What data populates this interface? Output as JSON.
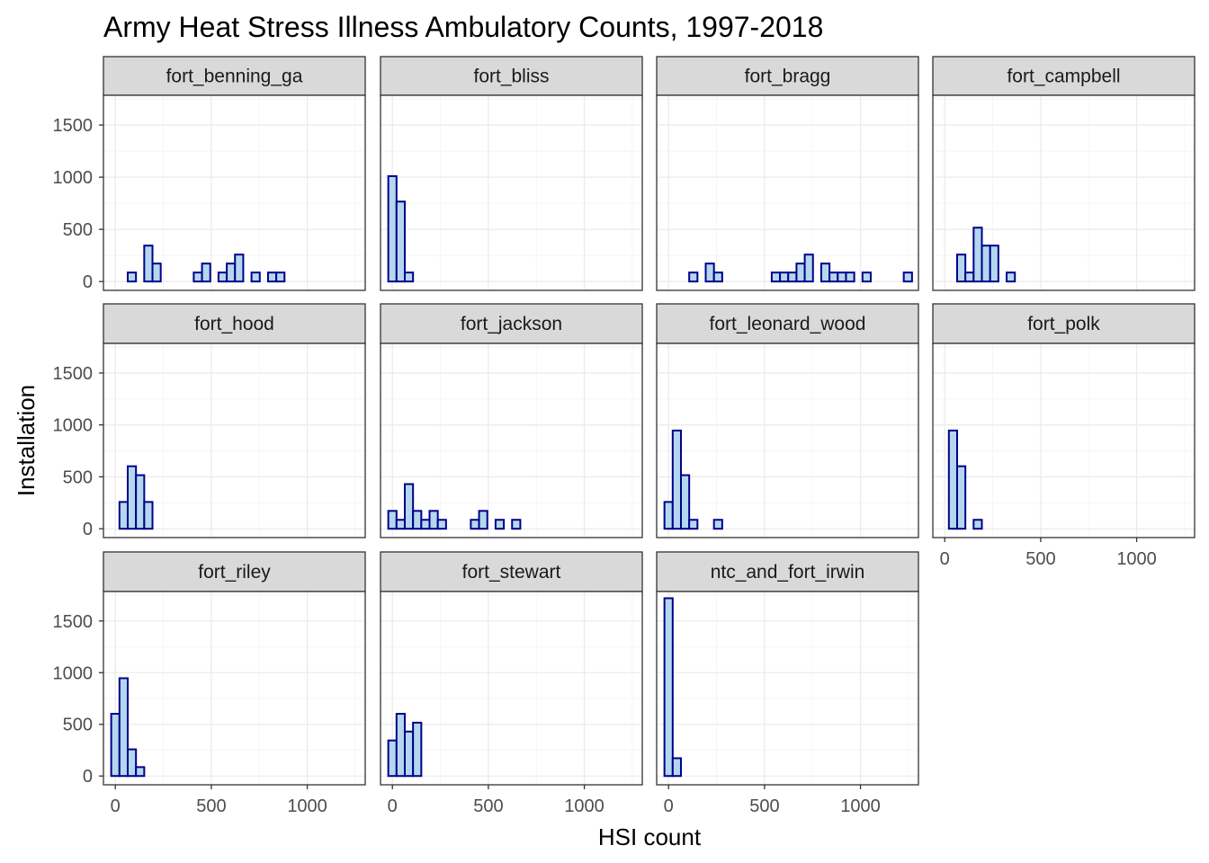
{
  "chart_data": {
    "type": "histogram",
    "title": "Army Heat Stress Illness Ambulatory Counts, 1997-2018",
    "xlabel": "HSI count",
    "ylabel": "Installation",
    "xlim": [
      -62,
      1302
    ],
    "ylim": [
      -85,
      1785
    ],
    "x_ticks": [
      0,
      500,
      1000
    ],
    "y_ticks": [
      0,
      500,
      1000,
      1500
    ],
    "bin_width": 43,
    "bin_start": -21.5,
    "bar_fill": "#b4d7ed",
    "bar_stroke": "#00008b",
    "facet_columns": 4,
    "facets": [
      {
        "name": "fort_benning_ga",
        "counts": [
          0,
          0,
          86,
          0,
          344,
          172,
          0,
          0,
          0,
          0,
          86,
          172,
          0,
          86,
          172,
          258,
          0,
          86,
          0,
          86,
          86
        ]
      },
      {
        "name": "fort_bliss",
        "counts": [
          1010,
          766,
          86
        ]
      },
      {
        "name": "fort_bragg",
        "counts": [
          0,
          0,
          0,
          86,
          0,
          172,
          86,
          0,
          0,
          0,
          0,
          0,
          0,
          86,
          86,
          86,
          172,
          258,
          0,
          172,
          86,
          86,
          86,
          0,
          86,
          0,
          0,
          0,
          0,
          86
        ]
      },
      {
        "name": "fort_campbell",
        "counts": [
          0,
          0,
          258,
          86,
          516,
          344,
          344,
          0,
          86
        ]
      },
      {
        "name": "fort_hood",
        "counts": [
          0,
          258,
          602,
          516,
          258
        ]
      },
      {
        "name": "fort_jackson",
        "counts": [
          172,
          86,
          430,
          172,
          86,
          172,
          86,
          0,
          0,
          0,
          86,
          172,
          0,
          86,
          0,
          86
        ]
      },
      {
        "name": "fort_leonard_wood",
        "counts": [
          258,
          946,
          516,
          86,
          0,
          0,
          86
        ]
      },
      {
        "name": "fort_polk",
        "counts": [
          0,
          946,
          602,
          0,
          86
        ]
      },
      {
        "name": "fort_riley",
        "counts": [
          602,
          946,
          258,
          86
        ]
      },
      {
        "name": "fort_stewart",
        "counts": [
          344,
          602,
          430,
          516
        ]
      },
      {
        "name": "ntc_and_fort_irwin",
        "counts": [
          1720,
          172
        ]
      }
    ]
  }
}
